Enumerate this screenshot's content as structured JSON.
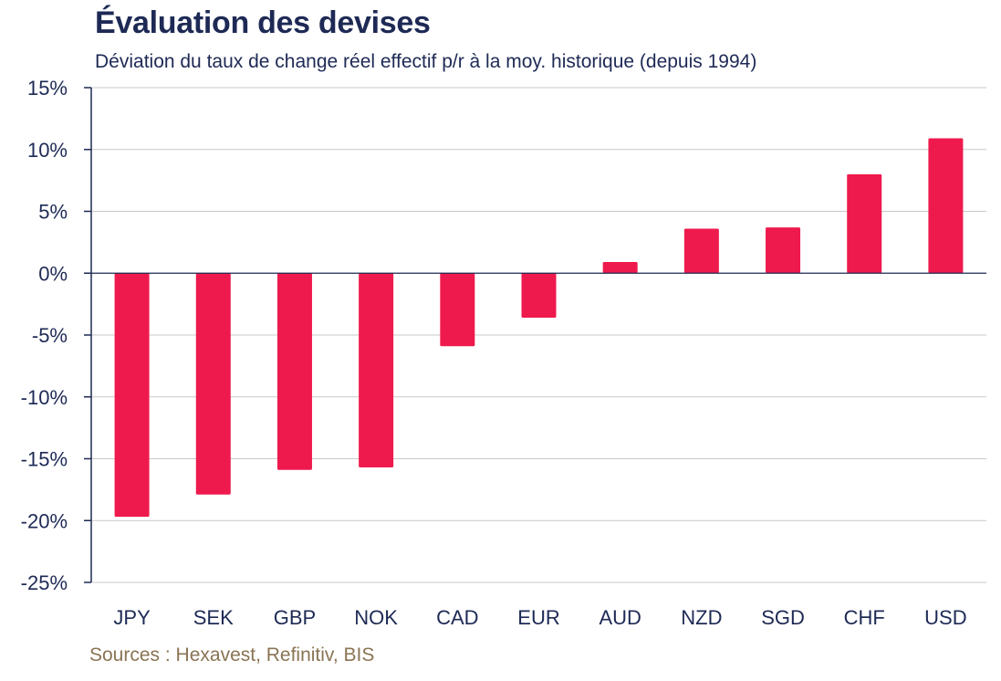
{
  "title": "Évaluation des devises",
  "subtitle": "Déviation du taux de change réel effectif p/r à la moy. historique (depuis 1994)",
  "source": "Sources : Hexavest, Refinitiv, BIS",
  "colors": {
    "bar": "#ee1a4d",
    "text": "#1e2a55",
    "grid": "#c8c8c8",
    "source": "#8a7454"
  },
  "chart_data": {
    "type": "bar",
    "title": "Évaluation des devises",
    "subtitle": "Déviation du taux de change réel effectif p/r à la moy. historique (depuis 1994)",
    "categories": [
      "JPY",
      "SEK",
      "GBP",
      "NOK",
      "CAD",
      "EUR",
      "AUD",
      "NZD",
      "SGD",
      "CHF",
      "USD"
    ],
    "values": [
      -19.7,
      -17.9,
      -15.9,
      -15.7,
      -5.9,
      -3.6,
      0.9,
      3.6,
      3.7,
      8.0,
      10.9
    ],
    "ylim": [
      -25,
      15
    ],
    "yticks": [
      15,
      10,
      5,
      0,
      -5,
      -10,
      -15,
      -20,
      -25
    ],
    "ytick_labels": [
      "15%",
      "10%",
      "5%",
      "0%",
      "-5%",
      "-10%",
      "-15%",
      "-20%",
      "-25%"
    ],
    "xlabel": "",
    "ylabel": "",
    "grid": true,
    "legend": "none"
  }
}
